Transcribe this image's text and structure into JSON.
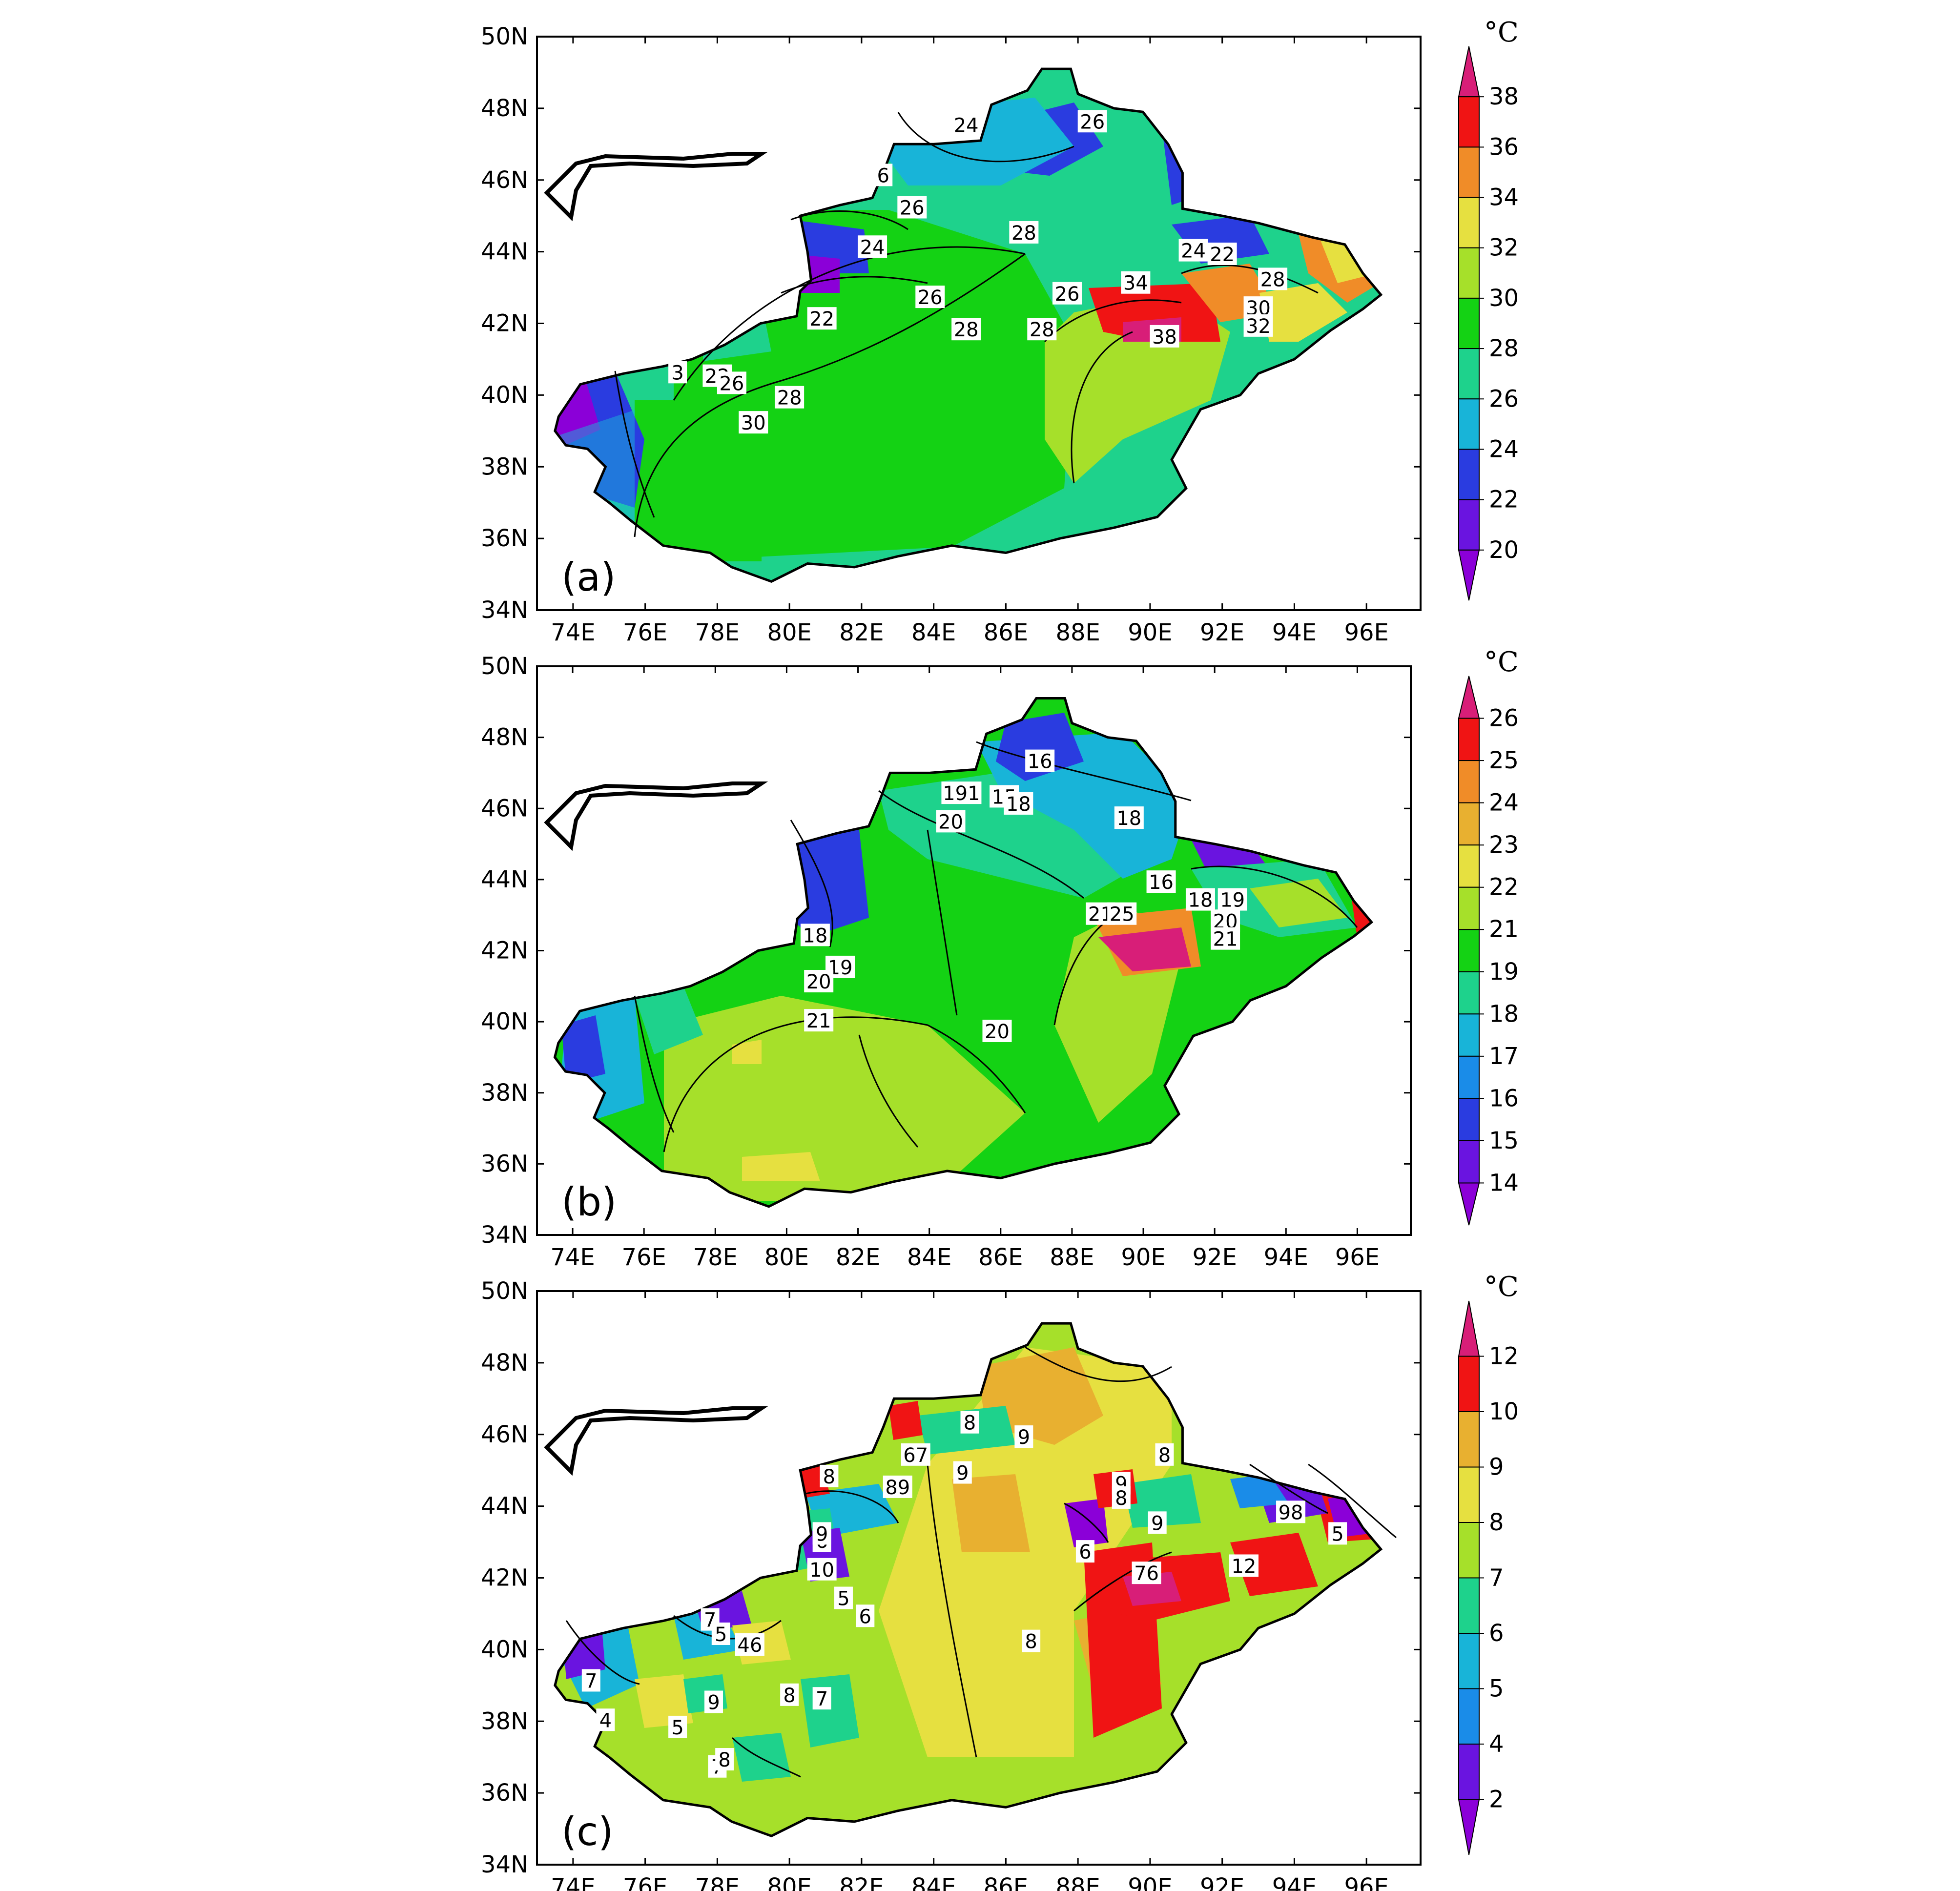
{
  "panels": [
    {
      "id": "a",
      "label": "(a)",
      "unit": "°C",
      "colorbar": {
        "levels": [
          "20",
          "22",
          "24",
          "26",
          "28",
          "30",
          "32",
          "34",
          "36",
          "38"
        ],
        "colors": [
          "#8b00d8",
          "#6a14e0",
          "#2a3ce0",
          "#18b4d8",
          "#1ed28c",
          "#14d214",
          "#a6e02a",
          "#e6e040",
          "#f08c28",
          "#f01414",
          "#d81e78"
        ]
      },
      "contour_labels": [
        "24",
        "26",
        "6",
        "26",
        "28",
        "24",
        "22",
        "24",
        "34",
        "28",
        "22",
        "26",
        "26",
        "30",
        "28",
        "28",
        "32",
        "38",
        "22",
        "3",
        "26",
        "28",
        "30"
      ]
    },
    {
      "id": "b",
      "label": "(b)",
      "unit": "°C",
      "colorbar": {
        "levels": [
          "14",
          "15",
          "16",
          "17",
          "18",
          "19",
          "21",
          "22",
          "23",
          "24",
          "25",
          "26"
        ],
        "colors": [
          "#8b00d8",
          "#6a14e0",
          "#2a3ce0",
          "#1a8ce8",
          "#18b4d8",
          "#1ed28c",
          "#14d214",
          "#a6e02a",
          "#e6e040",
          "#e8b030",
          "#f08c28",
          "#f01414",
          "#d81e78"
        ]
      },
      "contour_labels": [
        "16",
        "191",
        "15",
        "18",
        "20",
        "18",
        "16",
        "21",
        "25",
        "18",
        "19",
        "20",
        "21",
        "18",
        "19",
        "20",
        "21",
        "20"
      ]
    },
    {
      "id": "c",
      "label": "(c)",
      "unit": "°C",
      "colorbar": {
        "levels": [
          "2",
          "4",
          "5",
          "6",
          "7",
          "8",
          "9",
          "10",
          "12"
        ],
        "colors": [
          "#8b00d8",
          "#6a14e0",
          "#1a8ce8",
          "#18b4d8",
          "#1ed28c",
          "#a6e02a",
          "#e6e040",
          "#e8b030",
          "#f01414",
          "#d81e78"
        ]
      },
      "contour_labels": [
        "8",
        "9",
        "8",
        "67",
        "9",
        "8",
        "9",
        "6",
        "8",
        "89",
        "9",
        "98",
        "5",
        "9",
        "6",
        "76",
        "12",
        "10",
        "5",
        "6",
        "7",
        "5",
        "46",
        "8",
        "9",
        "7",
        "4",
        "5",
        "8",
        "7",
        "8",
        "7"
      ]
    }
  ],
  "axes": {
    "y_ticks": [
      "50N",
      "48N",
      "46N",
      "44N",
      "42N",
      "40N",
      "38N",
      "36N",
      "34N"
    ],
    "x_ticks": [
      "74E",
      "76E",
      "78E",
      "80E",
      "82E",
      "84E",
      "86E",
      "88E",
      "90E",
      "92E",
      "94E",
      "96E"
    ]
  }
}
